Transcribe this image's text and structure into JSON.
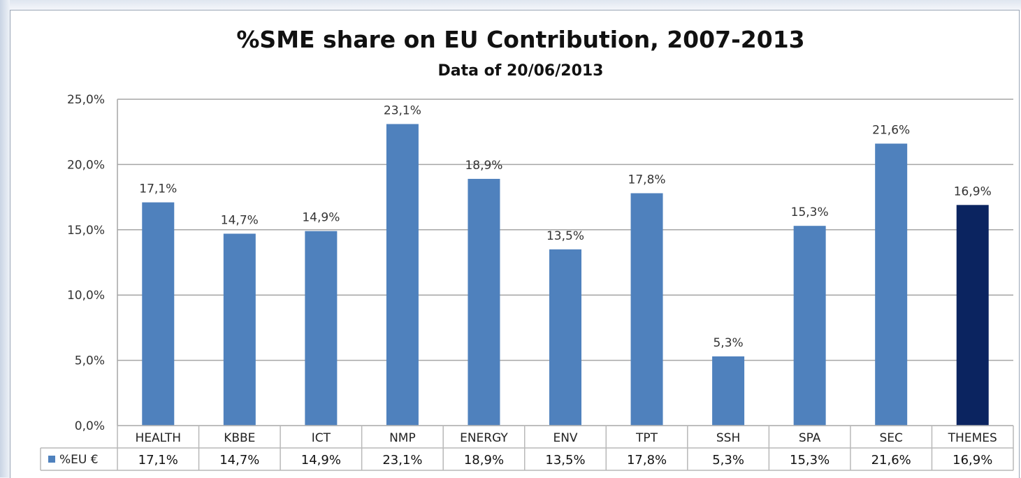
{
  "chart_data": {
    "type": "bar",
    "title": "%SME share on EU Contribution, 2007-2013",
    "subtitle": "Data of 20/06/2013",
    "categories": [
      "HEALTH",
      "KBBE",
      "ICT",
      "NMP",
      "ENERGY",
      "ENV",
      "TPT",
      "SSH",
      "SPA",
      "SEC",
      "THEMES"
    ],
    "series": [
      {
        "name": "%EU €",
        "values": [
          17.1,
          14.7,
          14.9,
          23.1,
          18.9,
          13.5,
          17.8,
          5.3,
          15.3,
          21.6,
          16.9
        ],
        "labels": [
          "17,1%",
          "14,7%",
          "14,9%",
          "23,1%",
          "18,9%",
          "13,5%",
          "17,8%",
          "5,3%",
          "15,3%",
          "21,6%",
          "16,9%"
        ]
      }
    ],
    "ylim": [
      0,
      25
    ],
    "yticks": [
      0,
      5,
      10,
      15,
      20,
      25
    ],
    "ytick_labels": [
      "0,0%",
      "5,0%",
      "10,0%",
      "15,0%",
      "20,0%",
      "25,0%"
    ],
    "grid": true,
    "data_table": true,
    "colors": {
      "bar": "#4f81bd",
      "highlight_bar": "#0b2460",
      "grid": "#a6a6a6",
      "table_border": "#b8b8b8"
    },
    "highlight_category": "THEMES"
  }
}
